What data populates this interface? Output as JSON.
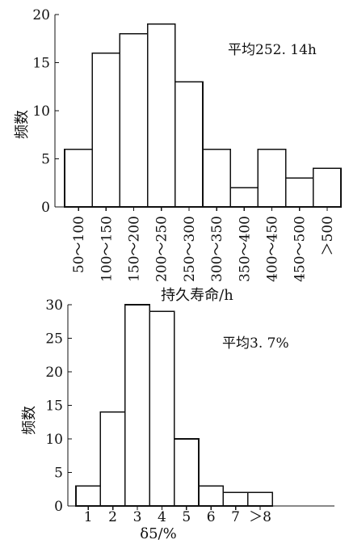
{
  "chart_data": [
    {
      "type": "bar",
      "title": "",
      "xlabel": "持久寿命/h",
      "ylabel": "频数",
      "ylim": [
        0,
        20
      ],
      "yticks": [
        0,
        5,
        10,
        15,
        20
      ],
      "grid": false,
      "annotation": "平均252. 14h",
      "categories": [
        "50～100",
        "100～150",
        "150～200",
        "200～250",
        "250～300",
        "300～350",
        "350～400",
        "400～450",
        "450～500",
        "＞500"
      ],
      "values": [
        6,
        16,
        18,
        19,
        13,
        6,
        2,
        6,
        3,
        4
      ]
    },
    {
      "type": "bar",
      "title": "",
      "xlabel": "δ5/%",
      "ylabel": "频数",
      "ylim": [
        0,
        30
      ],
      "yticks": [
        0,
        5,
        10,
        15,
        20,
        25,
        30
      ],
      "grid": false,
      "annotation": "平均3. 7%",
      "categories": [
        "1",
        "2",
        "3",
        "4",
        "5",
        "6",
        "7",
        "＞8"
      ],
      "values": [
        3,
        14,
        30,
        29,
        10,
        3,
        2,
        2
      ]
    }
  ]
}
